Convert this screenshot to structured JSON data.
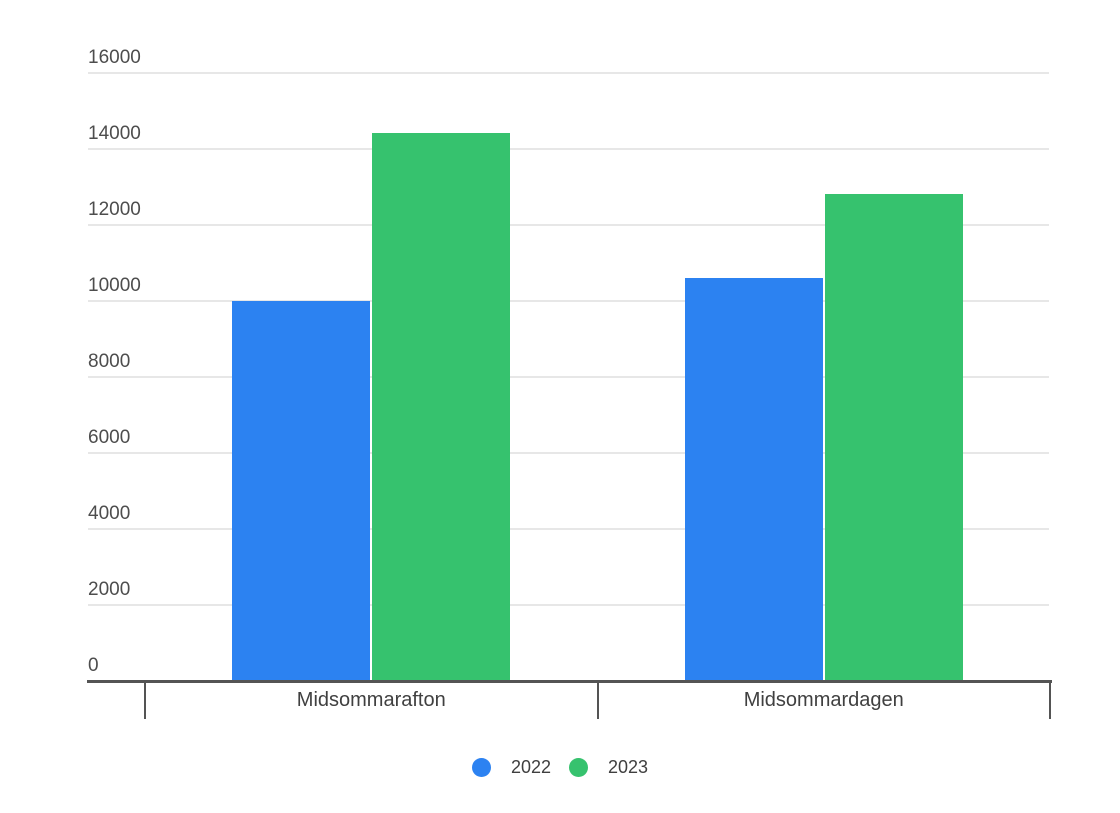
{
  "chart_data": {
    "type": "bar",
    "categories": [
      "Midsommarafton",
      "Midsommardagen"
    ],
    "series": [
      {
        "name": "2022",
        "color": "#2c82f1",
        "values": [
          10000,
          10600
        ]
      },
      {
        "name": "2023",
        "color": "#36c26e",
        "values": [
          14400,
          12800
        ]
      }
    ],
    "xlabel": "",
    "ylabel": "",
    "ylim": [
      0,
      16000
    ],
    "y_ticks": [
      0,
      2000,
      4000,
      6000,
      8000,
      10000,
      12000,
      14000,
      16000
    ],
    "grid": true,
    "legend_position": "bottom"
  },
  "colors": {
    "background": "#ffffff",
    "gridline": "#e7e7e7",
    "axis_line": "#545454",
    "tick_label_text": "#4d4d4d",
    "category_label_text": "#404040",
    "legend_label_text": "#3f3f3f"
  }
}
